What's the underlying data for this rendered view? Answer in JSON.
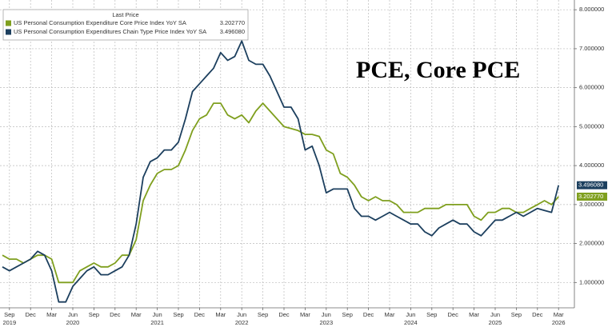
{
  "chart_data": {
    "type": "line",
    "annotation": "PCE, Core PCE",
    "legend_header": "Last Price",
    "x": [
      "2019-08",
      "2019-09",
      "2019-10",
      "2019-11",
      "2019-12",
      "2020-01",
      "2020-02",
      "2020-03",
      "2020-04",
      "2020-05",
      "2020-06",
      "2020-07",
      "2020-08",
      "2020-09",
      "2020-10",
      "2020-11",
      "2020-12",
      "2021-01",
      "2021-02",
      "2021-03",
      "2021-04",
      "2021-05",
      "2021-06",
      "2021-07",
      "2021-08",
      "2021-09",
      "2021-10",
      "2021-11",
      "2021-12",
      "2022-01",
      "2022-02",
      "2022-03",
      "2022-04",
      "2022-05",
      "2022-06",
      "2022-07",
      "2022-08",
      "2022-09",
      "2022-10",
      "2022-11",
      "2022-12",
      "2023-01",
      "2023-02",
      "2023-03",
      "2023-04",
      "2023-05",
      "2023-06",
      "2023-07",
      "2023-08",
      "2023-09",
      "2023-10",
      "2023-11",
      "2023-12",
      "2024-01",
      "2024-02",
      "2024-03",
      "2024-04",
      "2024-05",
      "2024-06",
      "2024-07",
      "2024-08",
      "2024-09",
      "2024-10",
      "2024-11",
      "2024-12",
      "2025-01",
      "2025-02",
      "2025-03",
      "2025-04",
      "2025-05",
      "2025-06",
      "2025-07",
      "2025-08",
      "2025-09",
      "2025-10",
      "2025-11",
      "2025-12",
      "2026-01",
      "2026-02",
      "2026-03"
    ],
    "series": [
      {
        "name": "US Personal Consumption Expenditure Core Price Index YoY SA",
        "color": "#7f9f1e",
        "last_value_label": "3.202770",
        "values": [
          1.7,
          1.6,
          1.6,
          1.5,
          1.6,
          1.7,
          1.7,
          1.6,
          1.0,
          1.0,
          1.0,
          1.3,
          1.4,
          1.5,
          1.4,
          1.4,
          1.5,
          1.7,
          1.7,
          2.1,
          3.1,
          3.5,
          3.8,
          3.9,
          3.9,
          4.0,
          4.4,
          4.9,
          5.2,
          5.3,
          5.6,
          5.6,
          5.3,
          5.2,
          5.3,
          5.1,
          5.4,
          5.6,
          5.4,
          5.2,
          5.0,
          4.95,
          4.9,
          4.8,
          4.8,
          4.75,
          4.4,
          4.3,
          3.8,
          3.7,
          3.5,
          3.2,
          3.1,
          3.2,
          3.1,
          3.1,
          3.0,
          2.8,
          2.8,
          2.8,
          2.9,
          2.9,
          2.9,
          3.0,
          3.0,
          3.0,
          3.0,
          2.7,
          2.6,
          2.8,
          2.8,
          2.9,
          2.9,
          2.8,
          2.8,
          2.9,
          3.0,
          3.1,
          3.0,
          3.20277
        ]
      },
      {
        "name": "US Personal Consumption Expenditures Chain Type Price Index YoY SA",
        "color": "#1c3f5e",
        "last_value_label": "3.496080",
        "values": [
          1.4,
          1.3,
          1.4,
          1.5,
          1.6,
          1.8,
          1.7,
          1.3,
          0.5,
          0.5,
          0.9,
          1.1,
          1.3,
          1.4,
          1.2,
          1.2,
          1.3,
          1.4,
          1.7,
          2.5,
          3.7,
          4.1,
          4.2,
          4.4,
          4.4,
          4.6,
          5.2,
          5.9,
          6.1,
          6.3,
          6.5,
          6.9,
          6.7,
          6.8,
          7.2,
          6.7,
          6.6,
          6.6,
          6.3,
          5.9,
          5.5,
          5.5,
          5.2,
          4.4,
          4.5,
          4.0,
          3.3,
          3.4,
          3.4,
          3.4,
          2.9,
          2.7,
          2.7,
          2.6,
          2.7,
          2.8,
          2.7,
          2.6,
          2.5,
          2.5,
          2.3,
          2.2,
          2.4,
          2.5,
          2.6,
          2.5,
          2.5,
          2.3,
          2.2,
          2.4,
          2.6,
          2.6,
          2.7,
          2.8,
          2.7,
          2.8,
          2.9,
          2.85,
          2.8,
          3.49608
        ]
      }
    ],
    "ylim": [
      0.35,
      8.25
    ],
    "yticks": [
      {
        "value": 1,
        "label": "1.000000"
      },
      {
        "value": 2,
        "label": "2.000000"
      },
      {
        "value": 3,
        "label": "3.000000"
      },
      {
        "value": 4,
        "label": "4.000000"
      },
      {
        "value": 5,
        "label": "5.000000"
      },
      {
        "value": 6,
        "label": "6.000000"
      },
      {
        "value": 7,
        "label": "7.000000"
      },
      {
        "value": 8,
        "label": "8.000000"
      }
    ],
    "xticks": [
      {
        "value": "2019-09",
        "label": "Sep"
      },
      {
        "value": "2019-12",
        "label": "Dec"
      },
      {
        "value": "2020-03",
        "label": "Mar"
      },
      {
        "value": "2020-06",
        "label": "Jun"
      },
      {
        "value": "2020-09",
        "label": "Sep"
      },
      {
        "value": "2020-12",
        "label": "Dec"
      },
      {
        "value": "2021-03",
        "label": "Mar"
      },
      {
        "value": "2021-06",
        "label": "Jun"
      },
      {
        "value": "2021-09",
        "label": "Sep"
      },
      {
        "value": "2021-12",
        "label": "Dec"
      },
      {
        "value": "2022-03",
        "label": "Mar"
      },
      {
        "value": "2022-06",
        "label": "Jun"
      },
      {
        "value": "2022-09",
        "label": "Sep"
      },
      {
        "value": "2022-12",
        "label": "Dec"
      },
      {
        "value": "2023-03",
        "label": "Mar"
      },
      {
        "value": "2023-06",
        "label": "Jun"
      },
      {
        "value": "2023-09",
        "label": "Sep"
      },
      {
        "value": "2023-12",
        "label": "Dec"
      },
      {
        "value": "2024-03",
        "label": "Mar"
      },
      {
        "value": "2024-06",
        "label": "Jun"
      },
      {
        "value": "2024-09",
        "label": "Sep"
      },
      {
        "value": "2024-12",
        "label": "Dec"
      },
      {
        "value": "2025-03",
        "label": "Mar"
      },
      {
        "value": "2025-06",
        "label": "Jun"
      },
      {
        "value": "2025-09",
        "label": "Sep"
      },
      {
        "value": "2025-12",
        "label": "Dec"
      },
      {
        "value": "2026-03",
        "label": "Mar"
      }
    ],
    "year_labels": [
      {
        "value": "2019-09",
        "label": "2019"
      },
      {
        "value": "2020-06",
        "label": "2020"
      },
      {
        "value": "2021-06",
        "label": "2021"
      },
      {
        "value": "2022-06",
        "label": "2022"
      },
      {
        "value": "2023-06",
        "label": "2023"
      },
      {
        "value": "2024-06",
        "label": "2024"
      },
      {
        "value": "2025-06",
        "label": "2025"
      },
      {
        "value": "2026-03",
        "label": "2026"
      }
    ],
    "grid": true
  }
}
